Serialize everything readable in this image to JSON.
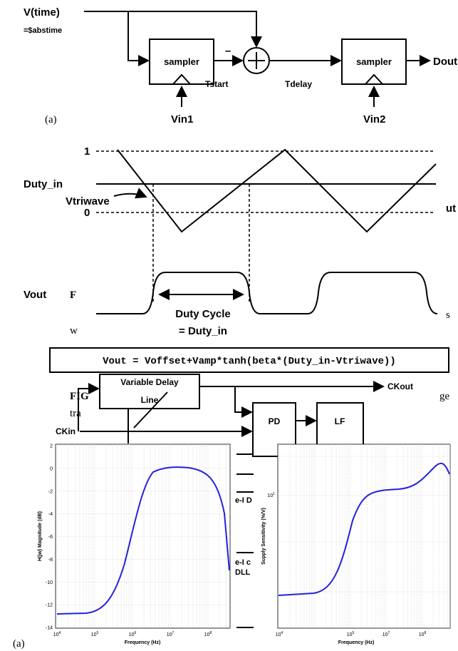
{
  "diagram_a": {
    "input": "V(time)",
    "input_note": "=$abstime",
    "block_1": "sampler",
    "minus": "–",
    "t_start": "Tstart",
    "t_delay": "Tdelay",
    "block_2": "sampler",
    "output": "Dout",
    "panel": "(a)",
    "trigger_1": "Vin1",
    "trigger_2": "Vin2"
  },
  "waveform": {
    "level_high": "1",
    "level_duty": "Duty_in",
    "level_low": "0",
    "tri_label": "Vtriwave",
    "out_label": "Vout",
    "duty_label": "Duty Cycle",
    "duty_eq": "= Duty_in",
    "equation": "Vout = Voffset+Vamp*tanh(beta*(Duty_in-Vtriwave))"
  },
  "fragments": [
    "F",
    "w",
    "s",
    "ut",
    "FIG",
    "tra",
    "ge",
    "e-I D",
    "e-I c",
    "DLL"
  ],
  "dll": {
    "delay_line_1": "Variable Delay",
    "delay_line_2": "Line",
    "ck_out": "CKout",
    "ck_in": "CKin",
    "pd": "PD",
    "lf": "LF"
  },
  "plot_left": {
    "ylabel": "H(jw) Magnitude (dB)",
    "xlabel": "Frequency (Hz)",
    "yticks": [
      "2",
      "0",
      "-2",
      "-4",
      "-6",
      "-8",
      "-10",
      "-12",
      "-14"
    ],
    "xticks": [
      {
        "base": "10",
        "exp": "4"
      },
      {
        "base": "10",
        "exp": "5"
      },
      {
        "base": "10",
        "exp": "6"
      },
      {
        "base": "10",
        "exp": "7"
      },
      {
        "base": "10",
        "exp": "8"
      }
    ],
    "panel": "(a)"
  },
  "plot_right": {
    "ylabel": "Supply Sensitivity (%/V)",
    "xlabel": "Frequency (Hz)",
    "ytick": {
      "base": "10",
      "exp": "1"
    },
    "xticks": [
      {
        "base": "10",
        "exp": "4"
      },
      {
        "base": "10",
        "exp": "5"
      },
      {
        "base": "10",
        "exp": "7"
      },
      {
        "base": "10",
        "exp": "8"
      }
    ]
  }
}
